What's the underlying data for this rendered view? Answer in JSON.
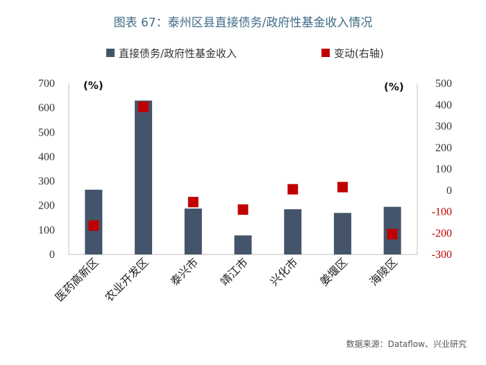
{
  "header": {
    "title": "图表 67：泰州区县直接债务/政府性基金收入情况",
    "source": "数据来源：Dataflow、兴业研究"
  },
  "chart_data": {
    "type": "bar",
    "categories": [
      "医药高新区",
      "农业开发区",
      "泰兴市",
      "靖江市",
      "兴化市",
      "姜堰区",
      "海陵区"
    ],
    "series": [
      {
        "name": "直接债务/政府性基金收入",
        "type": "bar",
        "axis": "left",
        "color": "#44546a",
        "values": [
          265,
          630,
          188,
          78,
          185,
          170,
          195
        ]
      },
      {
        "name": "变动(右轴)",
        "type": "scatter",
        "axis": "right",
        "color": "#c00000",
        "values": [
          -165,
          390,
          -55,
          -90,
          5,
          15,
          -205
        ]
      }
    ],
    "left_axis": {
      "unit": "(%)",
      "ylim": [
        0,
        700
      ],
      "ticks": [
        0,
        100,
        200,
        300,
        400,
        500,
        600,
        700
      ],
      "tick_color": "#333333"
    },
    "right_axis": {
      "unit": "(%)",
      "ylim": [
        -300,
        500
      ],
      "ticks": [
        -300,
        -200,
        -100,
        0,
        100,
        200,
        300,
        400,
        500
      ],
      "negative_color": "#c00000",
      "positive_color": "#333333"
    },
    "legend_position": "top",
    "grid": false
  }
}
